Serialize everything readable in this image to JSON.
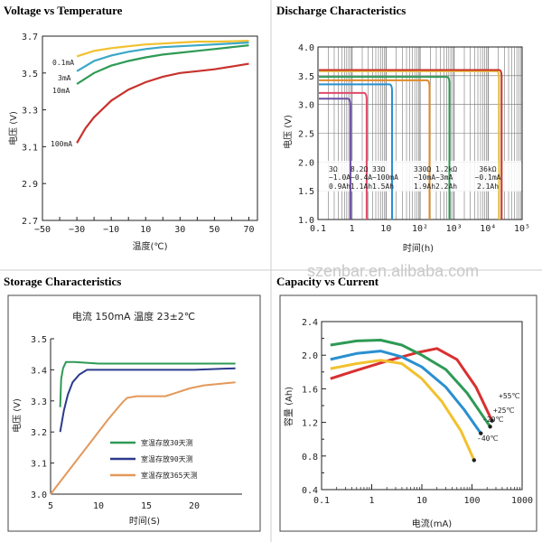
{
  "watermark": "szenbar.en.alibaba.com",
  "chart_data": [
    {
      "id": "vt",
      "type": "line",
      "title": "Voltage vs Temperature",
      "xlabel": "温度(℃)",
      "ylabel": "电压 (V)",
      "xlim": [
        -50,
        75
      ],
      "ylim": [
        2.7,
        3.7
      ],
      "xticks": [
        "−50",
        "−40",
        "−30",
        "−20",
        "−10",
        "0",
        "10",
        "20",
        "30",
        "40",
        "50",
        "60",
        "70"
      ],
      "yticks": [
        "3.7",
        "3.5",
        "3.3",
        "3.1",
        "2.9",
        "2.7"
      ],
      "series": [
        {
          "name": "0.1mA",
          "color": "#f2c12e",
          "x": [
            -30,
            -20,
            -10,
            0,
            10,
            20,
            30,
            40,
            50,
            60,
            70
          ],
          "y": [
            3.59,
            3.62,
            3.635,
            3.645,
            3.655,
            3.66,
            3.665,
            3.67,
            3.67,
            3.672,
            3.675
          ]
        },
        {
          "name": "3mA",
          "color": "#3aa8c6",
          "x": [
            -30,
            -20,
            -10,
            0,
            10,
            20,
            30,
            40,
            50,
            60,
            70
          ],
          "y": [
            3.51,
            3.565,
            3.595,
            3.615,
            3.63,
            3.64,
            3.645,
            3.65,
            3.655,
            3.66,
            3.665
          ]
        },
        {
          "name": "10mA",
          "color": "#2e9a55",
          "x": [
            -30,
            -20,
            -10,
            0,
            10,
            20,
            30,
            40,
            50,
            60,
            70
          ],
          "y": [
            3.44,
            3.5,
            3.54,
            3.565,
            3.585,
            3.6,
            3.61,
            3.62,
            3.63,
            3.64,
            3.65
          ]
        },
        {
          "name": "100mA",
          "color": "#c8322c",
          "x": [
            -30,
            -25,
            -20,
            -10,
            0,
            10,
            20,
            30,
            40,
            50,
            60,
            70
          ],
          "y": [
            3.12,
            3.2,
            3.26,
            3.35,
            3.41,
            3.45,
            3.48,
            3.5,
            3.51,
            3.52,
            3.535,
            3.55
          ]
        }
      ]
    },
    {
      "id": "dc",
      "type": "line",
      "title": "Discharge Characteristics",
      "xlabel": "时间(h)",
      "ylabel": "电压 (V)",
      "xscale": "log",
      "xlim": [
        0.1,
        100000
      ],
      "ylim": [
        1.0,
        4.0
      ],
      "xticks": [
        "0.1",
        "1",
        "10",
        "10²",
        "10³",
        "10⁴",
        "10⁵"
      ],
      "yticks": [
        "4.0",
        "3.5",
        "3.0",
        "2.5",
        "2.0",
        "1.5",
        "1.0"
      ],
      "legend_rows": [
        [
          "3Ω",
          "8.2Ω",
          "33Ω",
          "330Ω",
          "1.2kΩ",
          "36kΩ"
        ],
        [
          "~1.0A",
          "~0.4A",
          "~100mA",
          "~10mA",
          "~3mA",
          "~0.1mA"
        ],
        [
          "0.9Ah",
          "1.1Ah",
          "1.5Ah",
          "1.9Ah",
          "2.2Ah",
          "2.1Ah"
        ]
      ],
      "series": [
        {
          "name": "3Ω",
          "color": "#6c4ea3",
          "flat_voltage": 3.1,
          "end_hours": 0.9
        },
        {
          "name": "8.2Ω",
          "color": "#e04a6a",
          "flat_voltage": 3.2,
          "end_hours": 2.7
        },
        {
          "name": "33Ω",
          "color": "#2a8fd0",
          "flat_voltage": 3.35,
          "end_hours": 15
        },
        {
          "name": "330Ω",
          "color": "#e08a2a",
          "flat_voltage": 3.42,
          "end_hours": 190
        },
        {
          "name": "1.2kΩ",
          "color": "#2e9a55",
          "flat_voltage": 3.48,
          "end_hours": 730
        },
        {
          "name": "36kΩ",
          "color": "#e8c22e",
          "flat_voltage": 3.58,
          "end_hours": 21000
        },
        {
          "name": "36kΩ-upper",
          "color": "#c8322c",
          "flat_voltage": 3.6,
          "end_hours": 25000
        }
      ]
    },
    {
      "id": "st",
      "type": "line",
      "title": "Storage Characteristics",
      "caption": "电流 150mA   温度 23±2℃",
      "xlabel": "时间(S)",
      "ylabel": "电压 (V)",
      "xlim": [
        5,
        25
      ],
      "ylim": [
        3.0,
        3.5
      ],
      "xticks": [
        "5",
        "10",
        "15",
        "20"
      ],
      "yticks": [
        "3.5",
        "3.4",
        "3.3",
        "3.2",
        "3.1",
        "3.0"
      ],
      "series": [
        {
          "name": "室温存放30天测",
          "color": "#2e9a55",
          "x": [
            6.0,
            6.1,
            6.3,
            6.6,
            7.5,
            10,
            15,
            20,
            24.3
          ],
          "y": [
            3.28,
            3.37,
            3.405,
            3.425,
            3.425,
            3.42,
            3.42,
            3.42,
            3.42
          ]
        },
        {
          "name": "室温存放90天测",
          "color": "#2c3a8c",
          "x": [
            6.0,
            6.4,
            6.8,
            7.3,
            8.0,
            8.8,
            10,
            15,
            20,
            24.3
          ],
          "y": [
            3.2,
            3.27,
            3.32,
            3.36,
            3.385,
            3.4,
            3.4,
            3.4,
            3.4,
            3.405
          ]
        },
        {
          "name": "室温存放365天测",
          "color": "#e3985a",
          "x": [
            5.0,
            7.0,
            9.0,
            11.0,
            12.5,
            13.0,
            14.0,
            17.0,
            18.0,
            19.5,
            21.0,
            24.3
          ],
          "y": [
            3.0,
            3.08,
            3.16,
            3.24,
            3.295,
            3.31,
            3.315,
            3.315,
            3.325,
            3.34,
            3.35,
            3.36
          ]
        }
      ]
    },
    {
      "id": "cc",
      "type": "line",
      "title": "Capacity vs Current",
      "xlabel": "电流(mA)",
      "ylabel": "容量 (Ah)",
      "xscale": "log",
      "xlim": [
        0.1,
        1000
      ],
      "ylim": [
        0.4,
        2.4
      ],
      "xticks": [
        "0.1",
        "1",
        "10",
        "100",
        "1000"
      ],
      "yticks": [
        "2.4",
        "2.0",
        "1.6",
        "1.2",
        "0.8",
        "0.4"
      ],
      "series": [
        {
          "name": "+55℃",
          "color": "#d93030",
          "x": [
            0.15,
            0.5,
            2,
            8,
            20,
            50,
            120,
            250
          ],
          "y": [
            1.72,
            1.82,
            1.93,
            2.03,
            2.08,
            1.95,
            1.62,
            1.22
          ]
        },
        {
          "name": "+25℃",
          "color": "#2e9a55",
          "x": [
            0.15,
            0.5,
            1.5,
            4,
            10,
            30,
            80,
            230
          ],
          "y": [
            2.12,
            2.17,
            2.18,
            2.12,
            2.0,
            1.83,
            1.55,
            1.15
          ]
        },
        {
          "name": "-20℃",
          "color": "#2a8fd0",
          "x": [
            0.15,
            0.5,
            1.5,
            4,
            10,
            30,
            70,
            150
          ],
          "y": [
            1.95,
            2.02,
            2.05,
            1.98,
            1.86,
            1.62,
            1.35,
            1.07
          ]
        },
        {
          "name": "-40℃",
          "color": "#f2c12e",
          "x": [
            0.15,
            0.5,
            1.5,
            4,
            10,
            25,
            60,
            110
          ],
          "y": [
            1.84,
            1.9,
            1.94,
            1.9,
            1.72,
            1.45,
            1.1,
            0.75
          ]
        }
      ]
    }
  ]
}
